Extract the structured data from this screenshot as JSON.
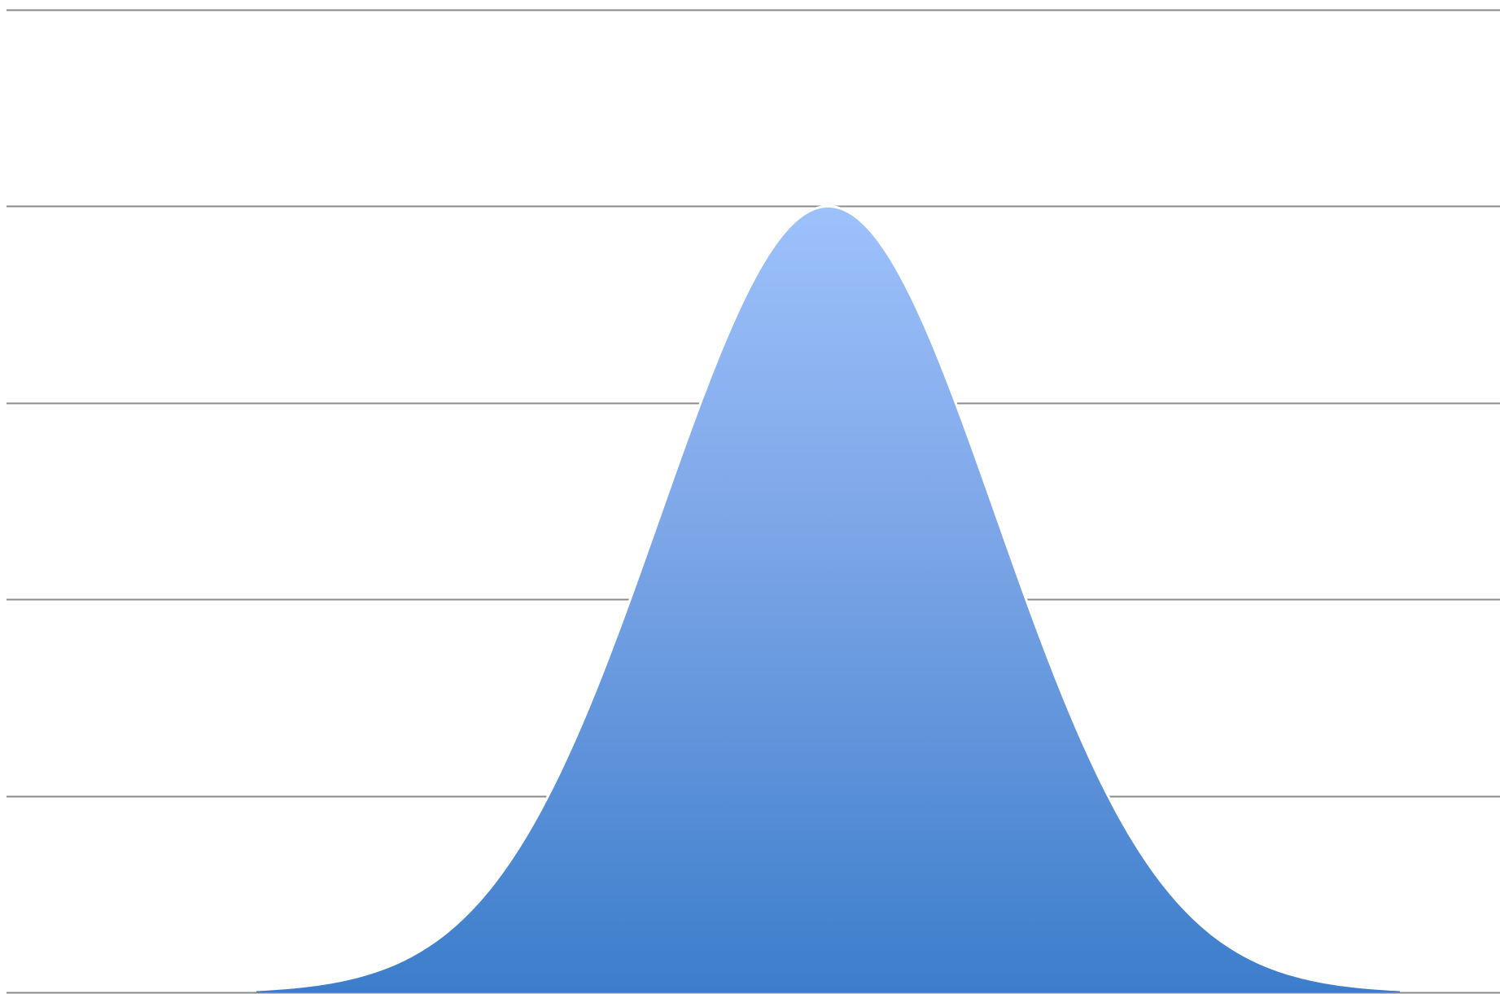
{
  "chart_data": {
    "type": "area",
    "distribution": "normal",
    "mean": 0,
    "std_dev": 1,
    "x_range": [
      -3.4,
      3.4
    ],
    "ylim": [
      0,
      1
    ],
    "peak_value": 0.8,
    "gridline_values": [
      0,
      0.2,
      0.4,
      0.6,
      0.8,
      1.0
    ],
    "grid": true,
    "legend": "none",
    "title": "",
    "xlabel": "",
    "ylabel": "",
    "colors": {
      "fill_top": "#9dc1fb",
      "fill_mid": "#7ea7e8",
      "fill_bottom": "#3c7dcb",
      "gridline": "#8a8a8a",
      "edge": "#ffffff"
    }
  }
}
